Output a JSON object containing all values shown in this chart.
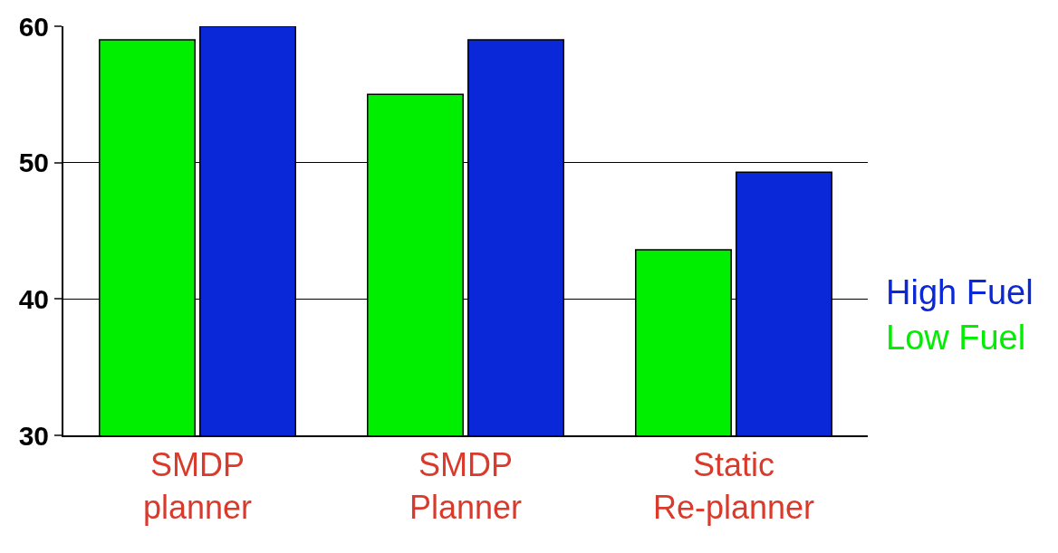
{
  "chart_data": {
    "type": "bar",
    "categories": [
      "SMDP\nplanner",
      "SMDP\nPlanner",
      "Static\nRe-planner"
    ],
    "series": [
      {
        "name": "Low Fuel",
        "color": "#00ee00",
        "values": [
          59,
          55,
          43.6
        ]
      },
      {
        "name": "High Fuel",
        "color": "#0a28d8",
        "values": [
          60,
          59,
          49.3
        ]
      }
    ],
    "ylim": [
      30,
      60
    ],
    "yticks": [
      30,
      40,
      50,
      60
    ],
    "grid": "y",
    "legend": "right"
  }
}
